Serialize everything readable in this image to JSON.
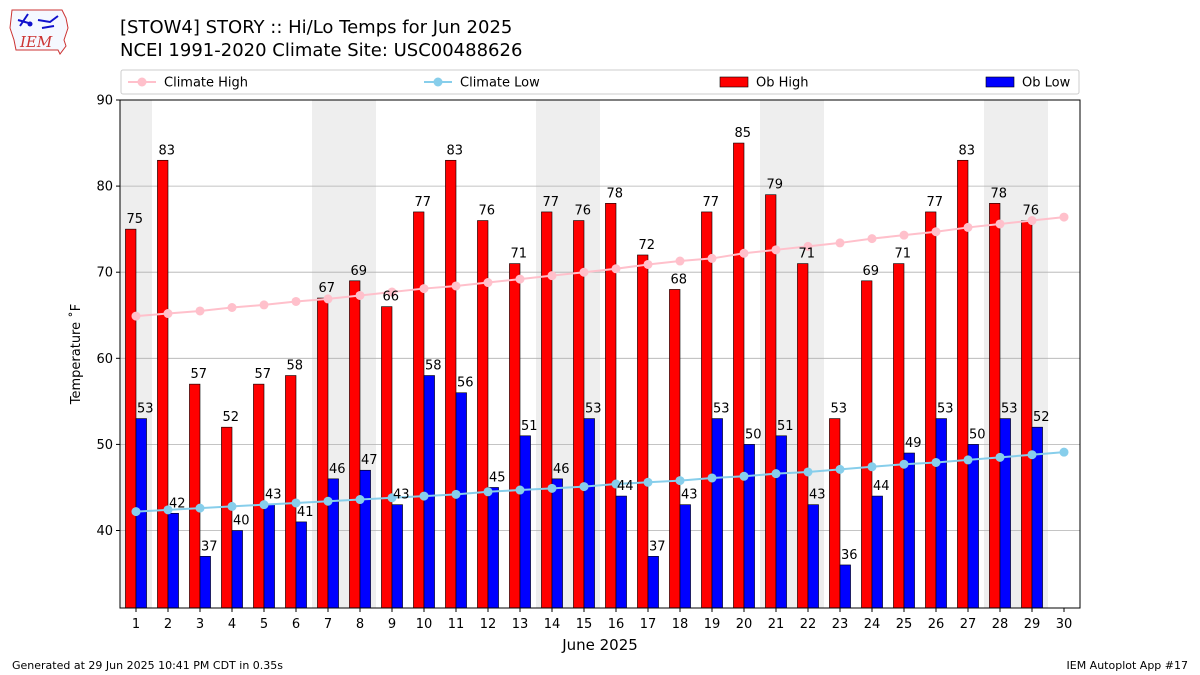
{
  "header": {
    "title_line1": "[STOW4] STORY :: Hi/Lo Temps for Jun 2025",
    "title_line2": "NCEI 1991-2020 Climate Site: USC00488626",
    "logo_text": "IEM"
  },
  "footer": {
    "left": "Generated at 29 Jun 2025 10:41 PM CDT in 0.35s",
    "right": "IEM Autoplot App #17"
  },
  "chart_data": {
    "type": "bar",
    "xlabel": "June 2025",
    "ylabel": "Temperature ˚F",
    "ylim": [
      31,
      90
    ],
    "yticks": [
      40,
      50,
      60,
      70,
      80,
      90
    ],
    "xlim": [
      0.5,
      30.5
    ],
    "categories": [
      1,
      2,
      3,
      4,
      5,
      6,
      7,
      8,
      9,
      10,
      11,
      12,
      13,
      14,
      15,
      16,
      17,
      18,
      19,
      20,
      21,
      22,
      23,
      24,
      25,
      26,
      27,
      28,
      29,
      30
    ],
    "weekend_shading": [
      [
        1,
        1
      ],
      [
        7,
        8
      ],
      [
        14,
        15
      ],
      [
        21,
        22
      ],
      [
        28,
        29
      ]
    ],
    "grid": "y",
    "legend_position": "top",
    "legend": [
      {
        "label": "Climate High",
        "kind": "line",
        "color": "#ffc0cb"
      },
      {
        "label": "Climate Low",
        "kind": "line",
        "color": "#87ceeb"
      },
      {
        "label": "Ob High",
        "kind": "bar",
        "color": "#ff0000"
      },
      {
        "label": "Ob Low",
        "kind": "bar",
        "color": "#0000ff"
      }
    ],
    "series": [
      {
        "name": "Ob High",
        "kind": "bar",
        "color": "#ff0000",
        "values": [
          75,
          83,
          57,
          52,
          57,
          58,
          67,
          69,
          66,
          77,
          83,
          76,
          71,
          77,
          76,
          78,
          72,
          68,
          77,
          85,
          79,
          71,
          53,
          69,
          71,
          77,
          83,
          78,
          76,
          null
        ]
      },
      {
        "name": "Ob Low",
        "kind": "bar",
        "color": "#0000ff",
        "values": [
          53,
          42,
          37,
          40,
          43,
          41,
          46,
          47,
          43,
          58,
          56,
          45,
          51,
          46,
          53,
          44,
          37,
          43,
          53,
          50,
          51,
          43,
          36,
          44,
          49,
          53,
          50,
          53,
          52,
          null
        ]
      },
      {
        "name": "Climate High",
        "kind": "line",
        "color": "#ffc0cb",
        "values": [
          64.9,
          65.2,
          65.5,
          65.9,
          66.2,
          66.6,
          66.9,
          67.3,
          67.7,
          68.1,
          68.4,
          68.8,
          69.2,
          69.6,
          70.0,
          70.4,
          70.9,
          71.3,
          71.6,
          72.2,
          72.6,
          73.0,
          73.4,
          73.9,
          74.3,
          74.7,
          75.2,
          75.6,
          76.0,
          76.4
        ]
      },
      {
        "name": "Climate Low",
        "kind": "line",
        "color": "#87ceeb",
        "values": [
          42.2,
          42.4,
          42.6,
          42.8,
          43.0,
          43.2,
          43.4,
          43.6,
          43.8,
          44.0,
          44.2,
          44.5,
          44.7,
          44.9,
          45.1,
          45.4,
          45.6,
          45.8,
          46.1,
          46.3,
          46.6,
          46.8,
          47.1,
          47.4,
          47.7,
          47.9,
          48.2,
          48.5,
          48.8,
          49.1
        ]
      }
    ]
  }
}
